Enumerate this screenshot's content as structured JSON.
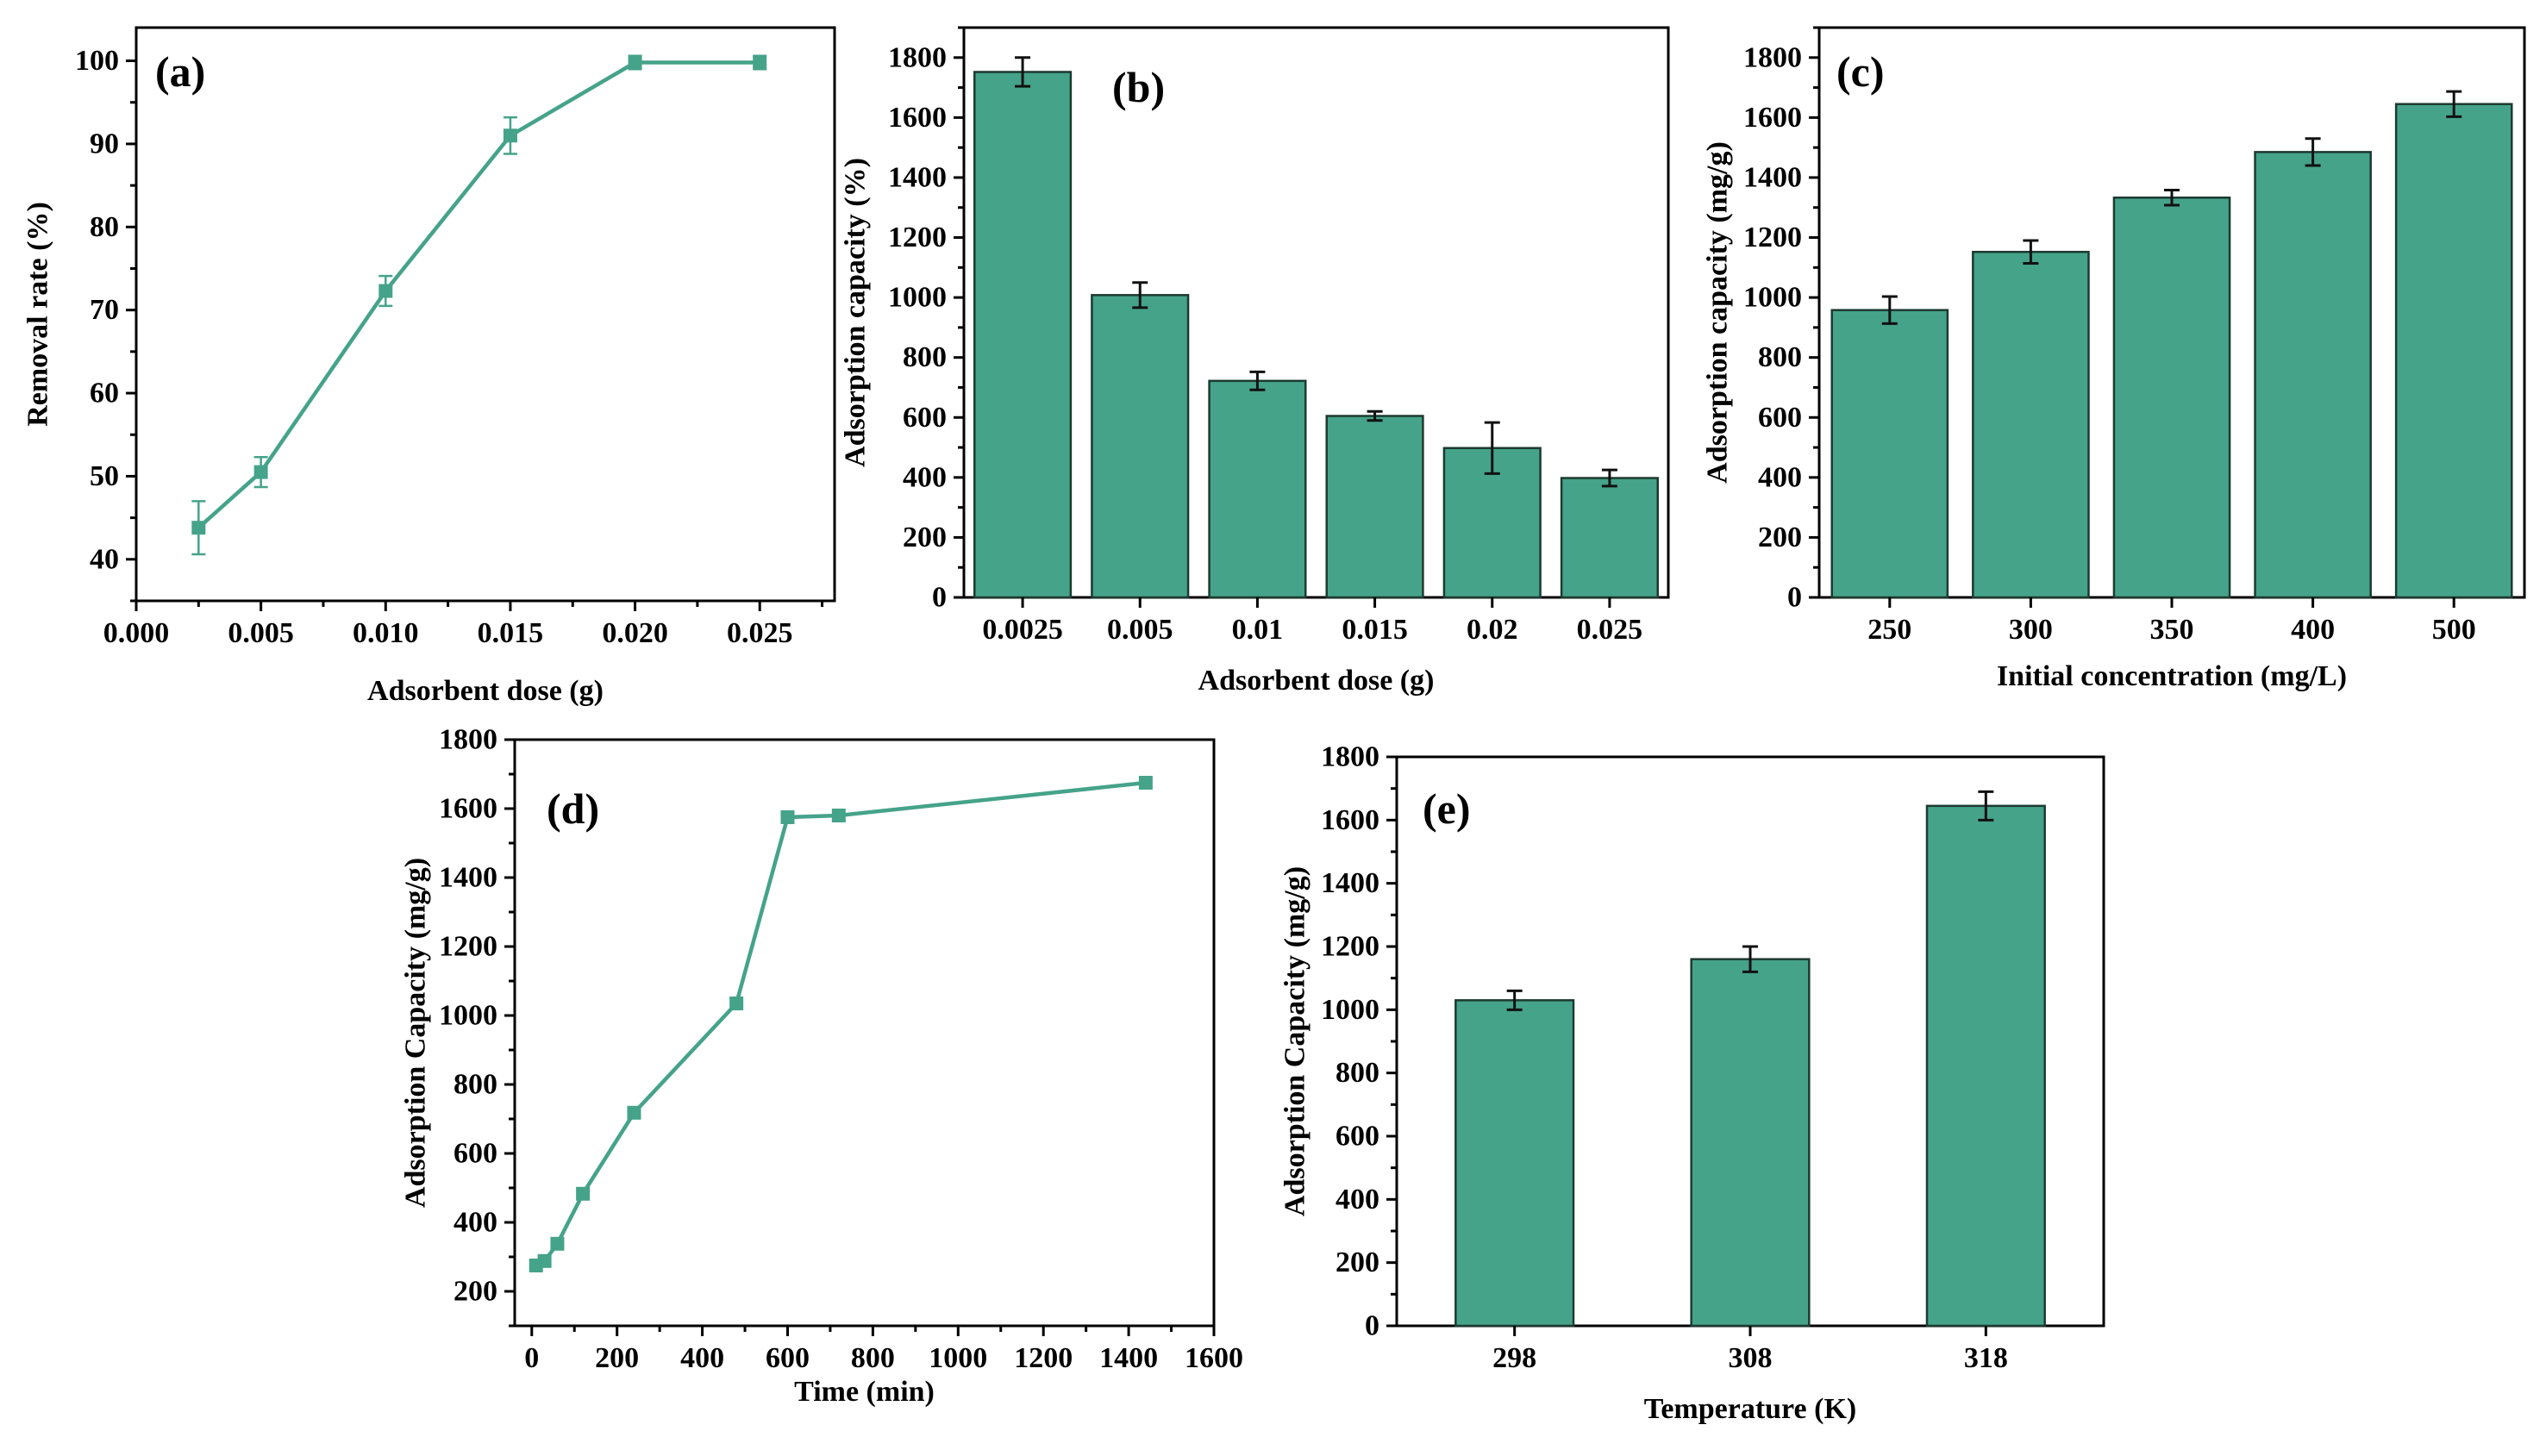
{
  "chart_data": [
    {
      "type": "line",
      "panel": "(a)",
      "title": "",
      "xlabel": "Adsorbent dose (g)",
      "ylabel": "Removal rate (%)",
      "xlim": [
        0.0,
        0.028
      ],
      "ylim": [
        35,
        104
      ],
      "xticks": [
        "0.000",
        "0.005",
        "0.010",
        "0.015",
        "0.020",
        "0.025"
      ],
      "yticks": [
        "40",
        "50",
        "60",
        "70",
        "80",
        "90",
        "100"
      ],
      "x": [
        0.0025,
        0.005,
        0.01,
        0.015,
        0.02,
        0.025
      ],
      "y": [
        43.8,
        50.5,
        72.3,
        91.0,
        99.8,
        99.8
      ],
      "errors": [
        3.2,
        1.8,
        1.8,
        2.2,
        0.8,
        0.8
      ],
      "color": "#45a38a",
      "marker": "square",
      "grid": false
    },
    {
      "type": "bar",
      "panel": "(b)",
      "title": "",
      "xlabel": "Adsorbent dose (g)",
      "ylabel": "Adsorption capacity (%)",
      "ylim": [
        0,
        1900
      ],
      "yticks": [
        "0",
        "200",
        "400",
        "600",
        "800",
        "1000",
        "1200",
        "1400",
        "1600",
        "1800"
      ],
      "categories": [
        "0.0025",
        "0.005",
        "0.01",
        "0.015",
        "0.02",
        "0.025"
      ],
      "values": [
        1752,
        1008,
        722,
        605,
        498,
        398
      ],
      "errors": [
        48,
        42,
        30,
        15,
        85,
        27
      ],
      "color": "#45a38a",
      "grid": false
    },
    {
      "type": "bar",
      "panel": "(c)",
      "title": "",
      "xlabel": "Initial concentration (mg/L)",
      "ylabel": "Adsorption capacity (mg/g)",
      "ylim": [
        0,
        1900
      ],
      "yticks": [
        "0",
        "200",
        "400",
        "600",
        "800",
        "1000",
        "1200",
        "1400",
        "1600",
        "1800"
      ],
      "categories": [
        "250",
        "300",
        "350",
        "400",
        "500"
      ],
      "values": [
        958,
        1152,
        1333,
        1485,
        1645
      ],
      "errors": [
        45,
        38,
        25,
        45,
        42
      ],
      "color": "#45a38a",
      "grid": false
    },
    {
      "type": "line",
      "panel": "(d)",
      "title": "",
      "xlabel": "Time (min)",
      "ylabel": "Adsorption Capacity (mg/g)",
      "xlim": [
        -40,
        1600
      ],
      "ylim": [
        100,
        1800
      ],
      "xticks": [
        "0",
        "200",
        "400",
        "600",
        "800",
        "1000",
        "1200",
        "1400",
        "1600"
      ],
      "yticks": [
        "200",
        "400",
        "600",
        "800",
        "1000",
        "1200",
        "1400",
        "1600",
        "1800"
      ],
      "x": [
        10,
        30,
        60,
        120,
        240,
        480,
        600,
        720,
        1440
      ],
      "y": [
        275,
        288,
        338,
        483,
        718,
        1035,
        1575,
        1580,
        1675
      ],
      "color": "#45a38a",
      "marker": "square",
      "grid": false
    },
    {
      "type": "bar",
      "panel": "(e)",
      "title": "",
      "xlabel": "Temperature (K)",
      "ylabel": "Adsorption Capacity (mg/g)",
      "ylim": [
        0,
        1800
      ],
      "yticks": [
        "0",
        "200",
        "400",
        "600",
        "800",
        "1000",
        "1200",
        "1400",
        "1600",
        "1800"
      ],
      "categories": [
        "298",
        "308",
        "318"
      ],
      "values": [
        1030,
        1160,
        1645
      ],
      "errors": [
        30,
        40,
        45
      ],
      "color": "#45a38a",
      "grid": false
    }
  ]
}
